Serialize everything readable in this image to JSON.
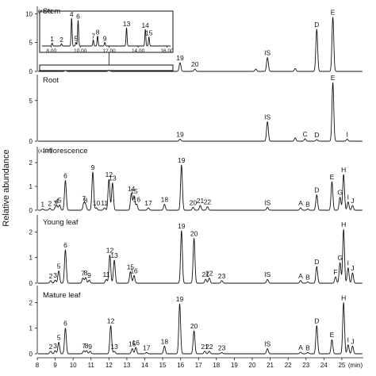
{
  "chart_data": {
    "type": "line",
    "ylabel": "Relative abundance",
    "xlabel_unit": "(min)",
    "x_ticks": [
      8,
      9,
      10,
      11,
      12,
      13,
      14,
      15,
      16,
      17,
      18,
      19,
      20,
      21,
      22,
      23,
      24,
      25
    ],
    "xlim": [
      8,
      26.2
    ],
    "peak_width": 0.05,
    "panels": [
      {
        "title": "Stem",
        "multiplier": "(x10⁵)",
        "yticks": [
          0,
          5,
          10
        ],
        "ylim": [
          0,
          11
        ],
        "peaks": [
          {
            "label": "19",
            "rt": 15.97,
            "h": 1.5
          },
          {
            "label": "20",
            "rt": 16.8,
            "h": 0.4
          },
          {
            "label": "IS",
            "rt": 20.85,
            "h": 2.4
          },
          {
            "label": "D",
            "rt": 23.6,
            "h": 7.3
          },
          {
            "label": "E",
            "rt": 24.5,
            "h": 9.4
          },
          {
            "label": "",
            "rt": 9.57,
            "h": 0.15
          },
          {
            "label": "",
            "rt": 12.0,
            "h": 0.2
          },
          {
            "label": "",
            "rt": 20.2,
            "h": 0.4
          },
          {
            "label": "",
            "rt": 22.4,
            "h": 0.5
          }
        ],
        "inset": {
          "xticks": [
            8.0,
            10.0,
            12.0,
            14.0,
            16.0
          ],
          "tick_labels": [
            "8.00",
            "10.00",
            "12.00",
            "14.00",
            "16.00"
          ],
          "xlim": [
            7.3,
            16.3
          ],
          "peaks": [
            {
              "label": "1",
              "rt": 8.05,
              "h": 0.1
            },
            {
              "label": "2",
              "rt": 8.7,
              "h": 0.08
            },
            {
              "label": "4",
              "rt": 9.4,
              "h": 0.92
            },
            {
              "label": "5",
              "rt": 9.7,
              "h": 0.12
            },
            {
              "label": "6",
              "rt": 9.85,
              "h": 0.85
            },
            {
              "label": "7",
              "rt": 10.9,
              "h": 0.2
            },
            {
              "label": "8",
              "rt": 11.2,
              "h": 0.33
            },
            {
              "label": "9",
              "rt": 11.7,
              "h": 0.12
            },
            {
              "label": "13",
              "rt": 13.2,
              "h": 0.6
            },
            {
              "label": "14",
              "rt": 14.5,
              "h": 0.55
            },
            {
              "label": "15",
              "rt": 14.75,
              "h": 0.3
            }
          ]
        }
      },
      {
        "title": "Root",
        "multiplier": "",
        "yticks": [
          0,
          5
        ],
        "ylim": [
          0,
          8
        ],
        "peaks": [
          {
            "label": "19",
            "rt": 15.97,
            "h": 0.25
          },
          {
            "label": "IS",
            "rt": 20.85,
            "h": 2.4
          },
          {
            "label": "",
            "rt": 22.4,
            "h": 0.4
          },
          {
            "label": "C",
            "rt": 22.95,
            "h": 0.3
          },
          {
            "label": "D",
            "rt": 23.6,
            "h": 0.2
          },
          {
            "label": "E",
            "rt": 24.5,
            "h": 7.2
          },
          {
            "label": "I",
            "rt": 25.3,
            "h": 0.25
          }
        ]
      },
      {
        "title": "Inflorescence",
        "multiplier": "(x10⁵)",
        "yticks": [
          0,
          1,
          2
        ],
        "ylim": [
          0,
          2.6
        ],
        "peaks": [
          {
            "label": "1",
            "rt": 8.3,
            "h": 0.05
          },
          {
            "label": "2",
            "rt": 8.7,
            "h": 0.08
          },
          {
            "label": "3",
            "rt": 9.0,
            "h": 0.1
          },
          {
            "label": "4",
            "rt": 9.1,
            "h": 0.18
          },
          {
            "label": "5",
            "rt": 9.25,
            "h": 0.22
          },
          {
            "label": "6",
            "rt": 9.57,
            "h": 1.25
          },
          {
            "label": "7",
            "rt": 10.6,
            "h": 0.3
          },
          {
            "label": "8",
            "rt": 10.7,
            "h": 0.22
          },
          {
            "label": "9",
            "rt": 11.1,
            "h": 1.6
          },
          {
            "label": "10",
            "rt": 11.3,
            "h": 0.1
          },
          {
            "label": "11",
            "rt": 11.75,
            "h": 0.1
          },
          {
            "label": "12",
            "rt": 12.0,
            "h": 1.3
          },
          {
            "label": "13",
            "rt": 12.2,
            "h": 1.15
          },
          {
            "label": "14",
            "rt": 13.25,
            "h": 0.7
          },
          {
            "label": "15",
            "rt": 13.4,
            "h": 0.6
          },
          {
            "label": "16",
            "rt": 13.55,
            "h": 0.25
          },
          {
            "label": "17",
            "rt": 14.2,
            "h": 0.1
          },
          {
            "label": "18",
            "rt": 15.1,
            "h": 0.25
          },
          {
            "label": "19",
            "rt": 16.05,
            "h": 1.9
          },
          {
            "label": "20",
            "rt": 16.7,
            "h": 0.12
          },
          {
            "label": "21",
            "rt": 17.1,
            "h": 0.2
          },
          {
            "label": "22",
            "rt": 17.5,
            "h": 0.15
          },
          {
            "label": "IS",
            "rt": 20.85,
            "h": 0.12
          },
          {
            "label": "A",
            "rt": 22.7,
            "h": 0.1
          },
          {
            "label": "B",
            "rt": 23.1,
            "h": 0.05
          },
          {
            "label": "D",
            "rt": 23.6,
            "h": 0.65
          },
          {
            "label": "E",
            "rt": 24.45,
            "h": 1.2
          },
          {
            "label": "G",
            "rt": 24.9,
            "h": 0.55
          },
          {
            "label": "H",
            "rt": 25.1,
            "h": 1.5
          },
          {
            "label": "I",
            "rt": 25.35,
            "h": 0.35
          },
          {
            "label": "J",
            "rt": 25.6,
            "h": 0.2
          }
        ]
      },
      {
        "title": "Young leaf",
        "multiplier": "",
        "yticks": [
          0,
          1,
          2
        ],
        "ylim": [
          0,
          2.6
        ],
        "peaks": [
          {
            "label": "2",
            "rt": 8.75,
            "h": 0.1
          },
          {
            "label": "3",
            "rt": 9.0,
            "h": 0.12
          },
          {
            "label": "5",
            "rt": 9.2,
            "h": 0.48
          },
          {
            "label": "6",
            "rt": 9.57,
            "h": 1.3
          },
          {
            "label": "7",
            "rt": 10.55,
            "h": 0.2
          },
          {
            "label": "8",
            "rt": 10.7,
            "h": 0.22
          },
          {
            "label": "9",
            "rt": 10.9,
            "h": 0.12
          },
          {
            "label": "11",
            "rt": 11.85,
            "h": 0.15
          },
          {
            "label": "12",
            "rt": 12.05,
            "h": 1.1
          },
          {
            "label": "13",
            "rt": 12.3,
            "h": 0.9
          },
          {
            "label": "15",
            "rt": 13.2,
            "h": 0.45
          },
          {
            "label": "16",
            "rt": 13.4,
            "h": 0.3
          },
          {
            "label": "19",
            "rt": 16.05,
            "h": 2.05
          },
          {
            "label": "20",
            "rt": 16.75,
            "h": 1.75
          },
          {
            "label": "21",
            "rt": 17.4,
            "h": 0.15
          },
          {
            "label": "22",
            "rt": 17.6,
            "h": 0.2
          },
          {
            "label": "23",
            "rt": 18.3,
            "h": 0.1
          },
          {
            "label": "IS",
            "rt": 20.85,
            "h": 0.15
          },
          {
            "label": "A",
            "rt": 22.7,
            "h": 0.1
          },
          {
            "label": "B",
            "rt": 23.1,
            "h": 0.05
          },
          {
            "label": "D",
            "rt": 23.6,
            "h": 0.65
          },
          {
            "label": "F",
            "rt": 24.65,
            "h": 0.25
          },
          {
            "label": "G",
            "rt": 24.9,
            "h": 0.8
          },
          {
            "label": "H",
            "rt": 25.1,
            "h": 2.1
          },
          {
            "label": "I",
            "rt": 25.35,
            "h": 0.6
          },
          {
            "label": "J",
            "rt": 25.6,
            "h": 0.4
          }
        ]
      },
      {
        "title": "Mature leaf",
        "multiplier": "",
        "yticks": [
          0,
          1,
          2
        ],
        "ylim": [
          0,
          2.6
        ],
        "peaks": [
          {
            "label": "2",
            "rt": 8.75,
            "h": 0.1
          },
          {
            "label": "3",
            "rt": 9.0,
            "h": 0.12
          },
          {
            "label": "5",
            "rt": 9.2,
            "h": 0.45
          },
          {
            "label": "6",
            "rt": 9.57,
            "h": 1.0
          },
          {
            "label": "7",
            "rt": 10.6,
            "h": 0.12
          },
          {
            "label": "8",
            "rt": 10.75,
            "h": 0.12
          },
          {
            "label": "9",
            "rt": 10.95,
            "h": 0.1
          },
          {
            "label": "12",
            "rt": 12.1,
            "h": 1.1
          },
          {
            "label": "13",
            "rt": 12.3,
            "h": 0.1
          },
          {
            "label": "15",
            "rt": 13.3,
            "h": 0.2
          },
          {
            "label": "16",
            "rt": 13.5,
            "h": 0.25
          },
          {
            "label": "17",
            "rt": 14.1,
            "h": 0.05
          },
          {
            "label": "18",
            "rt": 15.1,
            "h": 0.3
          },
          {
            "label": "19",
            "rt": 15.95,
            "h": 1.95
          },
          {
            "label": "20",
            "rt": 16.75,
            "h": 0.9
          },
          {
            "label": "21",
            "rt": 17.35,
            "h": 0.1
          },
          {
            "label": "22",
            "rt": 17.6,
            "h": 0.1
          },
          {
            "label": "23",
            "rt": 18.3,
            "h": 0.05
          },
          {
            "label": "IS",
            "rt": 20.85,
            "h": 0.2
          },
          {
            "label": "A",
            "rt": 22.7,
            "h": 0.06
          },
          {
            "label": "B",
            "rt": 23.1,
            "h": 0.05
          },
          {
            "label": "D",
            "rt": 23.6,
            "h": 1.1
          },
          {
            "label": "E",
            "rt": 24.45,
            "h": 0.55
          },
          {
            "label": "H",
            "rt": 25.1,
            "h": 2.0
          },
          {
            "label": "I",
            "rt": 25.35,
            "h": 0.35
          },
          {
            "label": "J",
            "rt": 25.6,
            "h": 0.3
          }
        ]
      }
    ]
  }
}
